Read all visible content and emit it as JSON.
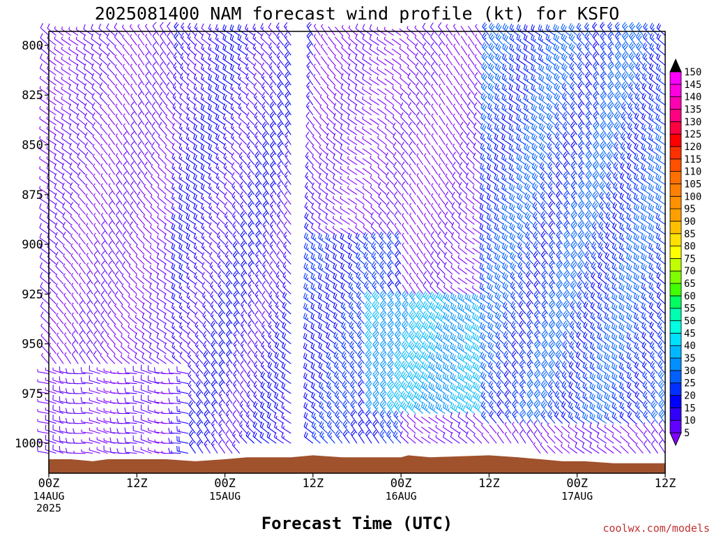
{
  "chart_data": {
    "type": "wind-barb-time-height",
    "title": "2025081400 NAM forecast wind profile (kt) for KSFO",
    "xlabel": "Forecast Time (UTC)",
    "y_axis": {
      "kind": "pressure (hPa), inverted",
      "range": [
        1015,
        793
      ],
      "ticks": [
        800,
        825,
        850,
        875,
        900,
        925,
        950,
        975,
        1000
      ]
    },
    "x_axis": {
      "range_hours": [
        0,
        84
      ],
      "ticks": [
        {
          "hour": 0,
          "label": "00Z",
          "date": "14AUG",
          "year": "2025"
        },
        {
          "hour": 12,
          "label": "12Z"
        },
        {
          "hour": 24,
          "label": "00Z",
          "date": "15AUG"
        },
        {
          "hour": 36,
          "label": "12Z"
        },
        {
          "hour": 48,
          "label": "00Z",
          "date": "16AUG"
        },
        {
          "hour": 60,
          "label": "12Z"
        },
        {
          "hour": 72,
          "label": "00Z",
          "date": "17AUG"
        },
        {
          "hour": 84,
          "label": "12Z"
        }
      ]
    },
    "colorbar": {
      "units": "kt",
      "levels": [
        5,
        10,
        15,
        20,
        25,
        30,
        35,
        40,
        45,
        50,
        55,
        60,
        65,
        70,
        75,
        80,
        85,
        90,
        95,
        100,
        105,
        110,
        115,
        120,
        125,
        130,
        135,
        140,
        145,
        150
      ],
      "colors": [
        "#8000ff",
        "#6000ff",
        "#3000ff",
        "#0000ff",
        "#0030ff",
        "#0060ff",
        "#0090ff",
        "#00b8ff",
        "#00e0ff",
        "#00ffe0",
        "#00ffb0",
        "#00ff60",
        "#40ff00",
        "#80ff00",
        "#c0ff00",
        "#ffff00",
        "#ffe000",
        "#ffc000",
        "#ffa000",
        "#ff9000",
        "#ff8000",
        "#ff7000",
        "#ff5000",
        "#ff3000",
        "#ff0000",
        "#ff0040",
        "#ff0080",
        "#ff00b0",
        "#ff00e0",
        "#ff00ff"
      ]
    },
    "terrain": {
      "color": "#a0522d",
      "surface_pressure_by_hour": [
        [
          0,
          1008
        ],
        [
          3,
          1008
        ],
        [
          6,
          1009
        ],
        [
          8,
          1008
        ],
        [
          16,
          1008
        ],
        [
          20,
          1009
        ],
        [
          24,
          1008
        ],
        [
          27,
          1007
        ],
        [
          33,
          1007
        ],
        [
          36,
          1006
        ],
        [
          40,
          1007
        ],
        [
          48,
          1007
        ],
        [
          49,
          1006
        ],
        [
          52,
          1007
        ],
        [
          60,
          1006
        ],
        [
          64,
          1007
        ],
        [
          67,
          1008
        ],
        [
          70,
          1009
        ],
        [
          73,
          1009
        ],
        [
          77,
          1010
        ],
        [
          84,
          1010
        ]
      ]
    },
    "barb_grid": {
      "hour_step": 1,
      "levels_hpa": [
        795,
        800,
        805,
        810,
        815,
        820,
        825,
        830,
        835,
        840,
        845,
        850,
        855,
        860,
        865,
        870,
        875,
        880,
        885,
        890,
        895,
        900,
        905,
        910,
        915,
        920,
        925,
        930,
        935,
        940,
        945,
        950,
        955,
        960,
        965,
        970,
        975,
        980,
        985,
        990,
        995,
        1000,
        1005
      ],
      "wind_from_deg_approx": "300-330 (NW); westerly near surface early",
      "speed_regions_kt": [
        {
          "hours": [
            0,
            18
          ],
          "levels": [
            795,
            1005
          ],
          "speed": 10
        },
        {
          "hours": [
            18,
            36
          ],
          "levels": [
            795,
            1005
          ],
          "speed": 18
        },
        {
          "hours": [
            36,
            48
          ],
          "levels": [
            900,
            1005
          ],
          "speed": 25
        },
        {
          "hours": [
            44,
            62
          ],
          "levels": [
            930,
            985
          ],
          "speed": 40
        },
        {
          "hours": [
            60,
            84
          ],
          "levels": [
            795,
            990
          ],
          "speed": 28
        }
      ]
    }
  },
  "credit": "coolwx.com/models"
}
